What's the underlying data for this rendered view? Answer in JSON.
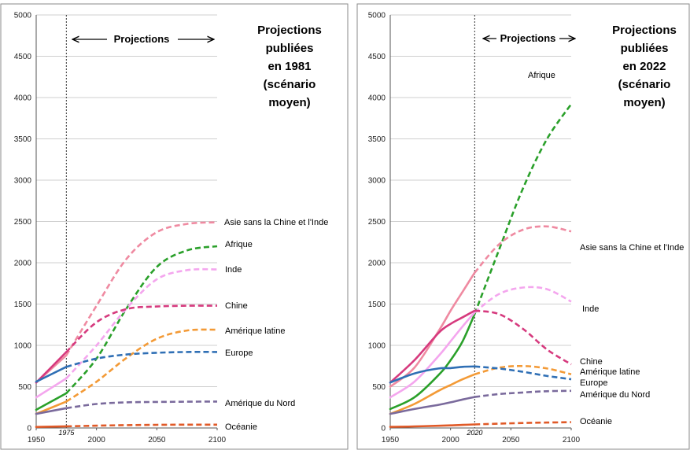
{
  "chart_data": [
    {
      "type": "line",
      "title_lines": [
        "Projections",
        "publiées",
        "en 1981",
        "(scénario",
        "moyen)"
      ],
      "projection_label": "Projections",
      "marker_year_label": "1975",
      "marker_year": 1975,
      "xlim": [
        1950,
        2100
      ],
      "ylim": [
        0,
        5000
      ],
      "x_ticks": [
        "1950",
        "2000",
        "2050",
        "2100"
      ],
      "y_ticks": [
        "0",
        "500",
        "1000",
        "1500",
        "2000",
        "2500",
        "3000",
        "3500",
        "4000",
        "4500",
        "5000"
      ],
      "series": [
        {
          "name": "Asie sans la Chine et l'Inde",
          "color": "#ef8aa1",
          "x": [
            1950,
            1975,
            2000,
            2025,
            2050,
            2075,
            2100
          ],
          "y": [
            550,
            880,
            1480,
            2050,
            2370,
            2470,
            2490
          ]
        },
        {
          "name": "Afrique",
          "color": "#2aa02a",
          "x": [
            1950,
            1975,
            2000,
            2025,
            2050,
            2075,
            2100
          ],
          "y": [
            220,
            420,
            840,
            1450,
            1950,
            2150,
            2200
          ]
        },
        {
          "name": "Inde",
          "color": "#f4a6ee",
          "x": [
            1950,
            1975,
            2000,
            2025,
            2050,
            2075,
            2100
          ],
          "y": [
            370,
            600,
            1000,
            1450,
            1800,
            1910,
            1920
          ]
        },
        {
          "name": "Chine",
          "color": "#d63a7e",
          "x": [
            1950,
            1975,
            2000,
            2025,
            2050,
            2075,
            2100
          ],
          "y": [
            550,
            920,
            1280,
            1440,
            1470,
            1480,
            1480
          ]
        },
        {
          "name": "Amérique latine",
          "color": "#f39a36",
          "x": [
            1950,
            1975,
            2000,
            2025,
            2050,
            2075,
            2100
          ],
          "y": [
            170,
            320,
            560,
            850,
            1080,
            1180,
            1190
          ]
        },
        {
          "name": "Europe",
          "color": "#2f6fb5",
          "x": [
            1950,
            1975,
            2000,
            2025,
            2050,
            2075,
            2100
          ],
          "y": [
            560,
            740,
            840,
            890,
            910,
            920,
            920
          ]
        },
        {
          "name": "Amérique du Nord",
          "color": "#7a6a9c",
          "x": [
            1950,
            1975,
            2000,
            2025,
            2050,
            2075,
            2100
          ],
          "y": [
            170,
            240,
            290,
            310,
            315,
            318,
            320
          ]
        },
        {
          "name": "Océanie",
          "color": "#e05a28",
          "x": [
            1950,
            1975,
            2000,
            2025,
            2050,
            2075,
            2100
          ],
          "y": [
            12,
            20,
            28,
            34,
            38,
            40,
            40
          ]
        }
      ]
    },
    {
      "type": "line",
      "title_lines": [
        "Projections",
        "publiées",
        "en 2022",
        "(scénario",
        "moyen)"
      ],
      "projection_label": "Projections",
      "marker_year_label": "2020",
      "marker_year": 2020,
      "xlim": [
        1950,
        2100
      ],
      "ylim": [
        0,
        5000
      ],
      "x_ticks": [
        "1950",
        "2000",
        "2050",
        "2100"
      ],
      "y_ticks": [
        "0",
        "500",
        "1000",
        "1500",
        "2000",
        "2500",
        "3000",
        "3500",
        "4000",
        "4500",
        "5000"
      ],
      "series": [
        {
          "name": "Afrique",
          "color": "#2aa02a",
          "x": [
            1950,
            1970,
            1990,
            2000,
            2010,
            2020,
            2040,
            2060,
            2080,
            2100
          ],
          "y": [
            230,
            370,
            640,
            820,
            1050,
            1380,
            2150,
            2900,
            3500,
            3920
          ]
        },
        {
          "name": "Asie sans la Chine et l'Inde",
          "color": "#ef8aa1",
          "x": [
            1950,
            1970,
            1990,
            2000,
            2010,
            2020,
            2040,
            2060,
            2080,
            2100
          ],
          "y": [
            500,
            730,
            1170,
            1420,
            1650,
            1880,
            2220,
            2400,
            2440,
            2380
          ]
        },
        {
          "name": "Inde",
          "color": "#f4a6ee",
          "x": [
            1950,
            1970,
            1990,
            2000,
            2010,
            2020,
            2040,
            2060,
            2080,
            2100
          ],
          "y": [
            370,
            560,
            870,
            1050,
            1230,
            1400,
            1620,
            1700,
            1680,
            1530
          ]
        },
        {
          "name": "Chine",
          "color": "#d63a7e",
          "x": [
            1950,
            1970,
            1990,
            2000,
            2010,
            2020,
            2040,
            2060,
            2080,
            2100
          ],
          "y": [
            550,
            820,
            1150,
            1260,
            1340,
            1420,
            1380,
            1200,
            950,
            770
          ]
        },
        {
          "name": "Amérique latine",
          "color": "#f39a36",
          "x": [
            1950,
            1970,
            1990,
            2000,
            2010,
            2020,
            2040,
            2060,
            2080,
            2100
          ],
          "y": [
            170,
            290,
            450,
            520,
            590,
            650,
            730,
            750,
            720,
            650
          ]
        },
        {
          "name": "Europe",
          "color": "#2f6fb5",
          "x": [
            1950,
            1970,
            1990,
            2000,
            2010,
            2020,
            2040,
            2060,
            2080,
            2100
          ],
          "y": [
            550,
            660,
            720,
            725,
            740,
            745,
            720,
            680,
            630,
            590
          ]
        },
        {
          "name": "Amérique du Nord",
          "color": "#7a6a9c",
          "x": [
            1950,
            1970,
            1990,
            2000,
            2010,
            2020,
            2040,
            2060,
            2080,
            2100
          ],
          "y": [
            170,
            230,
            280,
            310,
            345,
            375,
            410,
            430,
            445,
            450
          ]
        },
        {
          "name": "Océanie",
          "color": "#e05a28",
          "x": [
            1950,
            1970,
            1990,
            2000,
            2010,
            2020,
            2040,
            2060,
            2080,
            2100
          ],
          "y": [
            13,
            19,
            27,
            31,
            37,
            43,
            52,
            60,
            66,
            70
          ]
        }
      ]
    }
  ]
}
